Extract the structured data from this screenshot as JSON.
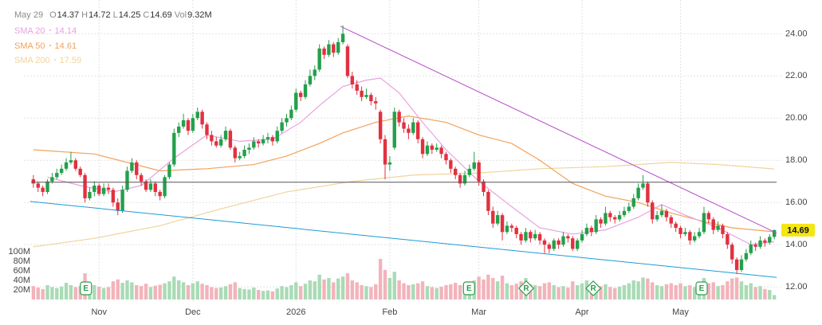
{
  "chart_data": {
    "type": "candlestick",
    "header": {
      "date": "May 29",
      "fields": [
        {
          "label": "O",
          "value": 14.37
        },
        {
          "label": "H",
          "value": 14.72
        },
        {
          "label": "L",
          "value": 14.25
        },
        {
          "label": "C",
          "value": 14.69
        },
        {
          "label": "Vol",
          "value": "9.32M"
        }
      ]
    },
    "xlim": [
      -1,
      159.5
    ],
    "xticks": [
      {
        "value": 14,
        "label": "Nov"
      },
      {
        "value": 34,
        "label": "Dec"
      },
      {
        "value": 56,
        "label": "2026"
      },
      {
        "value": 76,
        "label": "Feb"
      },
      {
        "value": 95,
        "label": "Mar"
      },
      {
        "value": 117,
        "label": "Apr"
      },
      {
        "value": 138,
        "label": "May"
      }
    ],
    "ylim": [
      11.4,
      25.6
    ],
    "yticks": [
      {
        "value": 12,
        "label": "12.00"
      },
      {
        "value": 14,
        "label": "14.00"
      },
      {
        "value": 16,
        "label": "16.00"
      },
      {
        "value": 18,
        "label": "18.00"
      },
      {
        "value": 20,
        "label": "20.00"
      },
      {
        "value": 22,
        "label": "22.00"
      },
      {
        "value": 24,
        "label": "24.00"
      }
    ],
    "vlim": [
      0,
      100
    ],
    "vticks": [
      {
        "value": 20,
        "label": "20M"
      },
      {
        "value": 40,
        "label": "40M"
      },
      {
        "value": 60,
        "label": "60M"
      },
      {
        "value": 80,
        "label": "80M"
      },
      {
        "value": 100,
        "label": "100M"
      }
    ],
    "grid": true,
    "up_color": "#23a04b",
    "down_color": "#e2303f",
    "vol_up_color": "#a9dbb5",
    "vol_down_color": "#f3b3bb",
    "ohlc": [
      [
        17.1,
        17.3,
        16.7,
        16.9
      ],
      [
        16.9,
        17.0,
        16.5,
        16.7
      ],
      [
        16.7,
        16.8,
        16.3,
        16.5
      ],
      [
        16.5,
        17.1,
        16.4,
        17.0
      ],
      [
        17.0,
        17.4,
        16.9,
        17.2
      ],
      [
        17.2,
        17.6,
        17.1,
        17.4
      ],
      [
        17.4,
        17.8,
        17.3,
        17.6
      ],
      [
        17.6,
        18.1,
        17.5,
        17.9
      ],
      [
        17.9,
        18.4,
        17.8,
        18.0
      ],
      [
        18.0,
        18.1,
        17.5,
        17.6
      ],
      [
        17.6,
        17.7,
        17.2,
        17.3
      ],
      [
        17.3,
        17.4,
        16.0,
        16.2
      ],
      [
        16.2,
        16.7,
        16.1,
        16.5
      ],
      [
        16.5,
        17.0,
        16.3,
        16.8
      ],
      [
        16.8,
        16.9,
        16.3,
        16.4
      ],
      [
        16.4,
        16.9,
        16.3,
        16.7
      ],
      [
        16.7,
        16.9,
        16.4,
        16.6
      ],
      [
        16.6,
        16.7,
        15.8,
        16.0
      ],
      [
        16.0,
        16.2,
        15.4,
        15.6
      ],
      [
        15.6,
        16.8,
        15.5,
        16.6
      ],
      [
        16.6,
        17.7,
        16.5,
        17.5
      ],
      [
        17.5,
        18.1,
        17.4,
        17.9
      ],
      [
        17.9,
        18.0,
        17.1,
        17.3
      ],
      [
        17.3,
        17.4,
        16.8,
        17.0
      ],
      [
        17.0,
        17.1,
        16.5,
        16.6
      ],
      [
        16.6,
        17.1,
        16.5,
        16.9
      ],
      [
        16.9,
        17.0,
        16.3,
        16.5
      ],
      [
        16.5,
        16.6,
        16.1,
        16.3
      ],
      [
        16.3,
        17.3,
        16.2,
        17.2
      ],
      [
        17.2,
        17.9,
        17.1,
        17.8
      ],
      [
        17.8,
        19.5,
        17.7,
        19.3
      ],
      [
        19.3,
        19.8,
        19.1,
        19.6
      ],
      [
        19.6,
        20.2,
        19.5,
        19.9
      ],
      [
        19.9,
        20.0,
        19.2,
        19.4
      ],
      [
        19.4,
        20.2,
        19.3,
        20.0
      ],
      [
        20.0,
        20.5,
        19.9,
        20.3
      ],
      [
        20.3,
        20.4,
        19.5,
        19.7
      ],
      [
        19.7,
        19.8,
        19.0,
        19.2
      ],
      [
        19.2,
        19.4,
        18.7,
        18.9
      ],
      [
        18.9,
        19.1,
        18.6,
        18.7
      ],
      [
        18.7,
        19.2,
        18.6,
        19.0
      ],
      [
        19.0,
        19.6,
        18.9,
        19.4
      ],
      [
        19.4,
        19.5,
        18.5,
        18.6
      ],
      [
        18.6,
        18.7,
        17.9,
        18.1
      ],
      [
        18.1,
        18.4,
        18.0,
        18.2
      ],
      [
        18.2,
        18.7,
        18.1,
        18.5
      ],
      [
        18.5,
        18.8,
        18.3,
        18.6
      ],
      [
        18.6,
        19.1,
        18.5,
        18.9
      ],
      [
        18.9,
        19.0,
        18.6,
        18.8
      ],
      [
        18.8,
        19.2,
        18.7,
        19.0
      ],
      [
        19.0,
        19.3,
        18.8,
        19.1
      ],
      [
        19.1,
        19.2,
        18.7,
        18.9
      ],
      [
        18.9,
        19.6,
        18.8,
        19.4
      ],
      [
        19.4,
        20.0,
        19.3,
        19.8
      ],
      [
        19.8,
        20.2,
        19.6,
        20.0
      ],
      [
        20.0,
        20.6,
        19.9,
        20.4
      ],
      [
        20.4,
        21.4,
        20.3,
        21.2
      ],
      [
        21.2,
        21.3,
        20.8,
        21.0
      ],
      [
        21.0,
        21.8,
        20.9,
        21.6
      ],
      [
        21.6,
        22.3,
        21.5,
        22.0
      ],
      [
        22.0,
        22.5,
        21.8,
        22.3
      ],
      [
        22.3,
        23.5,
        22.2,
        23.3
      ],
      [
        23.3,
        23.4,
        22.8,
        23.0
      ],
      [
        23.0,
        23.7,
        22.9,
        23.5
      ],
      [
        23.5,
        23.6,
        22.9,
        23.1
      ],
      [
        23.1,
        23.8,
        23.0,
        23.6
      ],
      [
        23.6,
        24.4,
        23.5,
        24.0
      ],
      [
        23.4,
        23.5,
        21.9,
        22.0
      ],
      [
        22.0,
        22.2,
        21.4,
        21.6
      ],
      [
        21.6,
        21.8,
        21.1,
        21.3
      ],
      [
        21.3,
        21.5,
        20.8,
        21.0
      ],
      [
        21.0,
        21.4,
        20.9,
        21.1
      ],
      [
        21.1,
        21.2,
        20.6,
        20.8
      ],
      [
        20.8,
        21.0,
        20.4,
        20.7
      ],
      [
        20.3,
        20.4,
        18.8,
        19.0
      ],
      [
        19.0,
        19.2,
        17.1,
        17.8
      ],
      [
        17.8,
        18.2,
        17.5,
        17.9
      ],
      [
        18.6,
        20.5,
        18.5,
        20.3
      ],
      [
        20.3,
        20.4,
        19.6,
        19.8
      ],
      [
        19.8,
        20.0,
        19.3,
        19.5
      ],
      [
        19.5,
        19.7,
        19.0,
        19.3
      ],
      [
        19.3,
        20.0,
        19.2,
        19.8
      ],
      [
        19.8,
        19.9,
        18.8,
        19.0
      ],
      [
        19.0,
        19.1,
        18.1,
        18.3
      ],
      [
        18.3,
        18.9,
        18.2,
        18.7
      ],
      [
        18.7,
        18.8,
        18.3,
        18.5
      ],
      [
        18.5,
        18.8,
        18.4,
        18.6
      ],
      [
        18.6,
        18.7,
        18.1,
        18.3
      ],
      [
        18.3,
        18.4,
        17.8,
        18.0
      ],
      [
        18.0,
        18.1,
        17.4,
        17.6
      ],
      [
        17.6,
        17.7,
        17.1,
        17.3
      ],
      [
        17.3,
        17.4,
        16.7,
        16.9
      ],
      [
        16.9,
        17.5,
        16.8,
        17.3
      ],
      [
        17.3,
        17.8,
        17.2,
        17.6
      ],
      [
        17.6,
        18.4,
        17.5,
        17.9
      ],
      [
        17.9,
        18.0,
        16.8,
        17.0
      ],
      [
        17.0,
        17.1,
        16.3,
        16.5
      ],
      [
        16.5,
        16.6,
        15.4,
        15.6
      ],
      [
        15.6,
        15.8,
        14.8,
        15.0
      ],
      [
        15.0,
        15.6,
        14.9,
        15.4
      ],
      [
        15.4,
        15.5,
        14.2,
        14.6
      ],
      [
        14.6,
        15.1,
        14.5,
        14.9
      ],
      [
        14.9,
        15.0,
        14.6,
        14.8
      ],
      [
        14.8,
        14.9,
        14.3,
        14.5
      ],
      [
        14.5,
        14.6,
        14.0,
        14.2
      ],
      [
        14.2,
        14.8,
        14.1,
        14.6
      ],
      [
        14.6,
        14.7,
        14.1,
        14.3
      ],
      [
        14.3,
        14.7,
        14.2,
        14.5
      ],
      [
        14.5,
        14.6,
        14.0,
        14.2
      ],
      [
        14.2,
        14.3,
        13.6,
        14.0
      ],
      [
        14.0,
        14.1,
        13.6,
        13.8
      ],
      [
        13.8,
        14.3,
        13.7,
        14.2
      ],
      [
        14.2,
        14.3,
        13.8,
        14.0
      ],
      [
        14.0,
        14.6,
        13.9,
        14.4
      ],
      [
        14.4,
        14.5,
        14.1,
        14.3
      ],
      [
        14.3,
        14.4,
        13.7,
        13.8
      ],
      [
        13.8,
        14.3,
        13.7,
        14.2
      ],
      [
        14.2,
        14.7,
        14.1,
        14.5
      ],
      [
        14.5,
        15.0,
        14.4,
        14.8
      ],
      [
        14.8,
        14.9,
        14.4,
        14.6
      ],
      [
        14.6,
        15.4,
        14.5,
        15.2
      ],
      [
        15.2,
        15.3,
        14.8,
        15.0
      ],
      [
        15.0,
        15.8,
        14.9,
        15.5
      ],
      [
        15.5,
        15.6,
        15.1,
        15.3
      ],
      [
        15.3,
        15.4,
        15.0,
        15.2
      ],
      [
        15.2,
        15.6,
        15.1,
        15.4
      ],
      [
        15.4,
        15.8,
        15.3,
        15.6
      ],
      [
        15.6,
        16.0,
        15.5,
        15.8
      ],
      [
        15.8,
        16.4,
        15.7,
        16.2
      ],
      [
        16.2,
        16.9,
        16.1,
        16.7
      ],
      [
        16.7,
        17.3,
        16.6,
        16.9
      ],
      [
        16.9,
        17.0,
        15.8,
        16.0
      ],
      [
        16.0,
        16.1,
        15.0,
        15.2
      ],
      [
        15.2,
        15.6,
        15.1,
        15.4
      ],
      [
        15.4,
        15.9,
        15.3,
        15.6
      ],
      [
        15.6,
        15.7,
        15.1,
        15.3
      ],
      [
        15.3,
        15.4,
        14.8,
        15.0
      ],
      [
        15.0,
        15.1,
        14.6,
        14.8
      ],
      [
        14.8,
        14.9,
        14.3,
        14.5
      ],
      [
        14.5,
        14.8,
        14.4,
        14.6
      ],
      [
        14.6,
        14.7,
        14.0,
        14.2
      ],
      [
        14.2,
        14.6,
        14.1,
        14.4
      ],
      [
        14.4,
        14.8,
        14.3,
        14.6
      ],
      [
        14.6,
        15.8,
        14.5,
        15.5
      ],
      [
        15.5,
        15.6,
        15.0,
        15.2
      ],
      [
        15.2,
        15.3,
        14.5,
        14.7
      ],
      [
        14.7,
        15.1,
        14.6,
        14.9
      ],
      [
        14.9,
        15.0,
        14.3,
        14.5
      ],
      [
        14.5,
        14.6,
        13.8,
        14.0
      ],
      [
        14.0,
        14.1,
        13.1,
        13.3
      ],
      [
        13.3,
        13.4,
        12.6,
        12.8
      ],
      [
        12.8,
        13.5,
        12.7,
        13.3
      ],
      [
        13.3,
        13.8,
        13.2,
        13.6
      ],
      [
        13.6,
        14.2,
        13.5,
        14.0
      ],
      [
        14.0,
        14.1,
        13.7,
        13.9
      ],
      [
        13.9,
        14.4,
        13.8,
        14.2
      ],
      [
        14.2,
        14.3,
        13.9,
        14.1
      ],
      [
        14.1,
        14.5,
        14.0,
        14.37
      ],
      [
        14.37,
        14.72,
        14.25,
        14.69
      ]
    ],
    "volume": [
      28,
      25,
      22,
      30,
      26,
      24,
      27,
      35,
      30,
      26,
      28,
      55,
      32,
      30,
      27,
      24,
      26,
      38,
      42,
      35,
      40,
      36,
      30,
      28,
      33,
      26,
      29,
      31,
      34,
      38,
      48,
      40,
      36,
      30,
      34,
      38,
      33,
      30,
      26,
      24,
      25,
      28,
      32,
      36,
      24,
      22,
      21,
      25,
      20,
      18,
      19,
      17,
      23,
      28,
      26,
      30,
      36,
      28,
      33,
      40,
      38,
      52,
      42,
      45,
      36,
      44,
      48,
      55,
      40,
      36,
      30,
      28,
      26,
      32,
      85,
      62,
      45,
      58,
      40,
      34,
      30,
      32,
      34,
      38,
      28,
      26,
      24,
      27,
      30,
      32,
      35,
      30,
      26,
      28,
      40,
      48,
      42,
      52,
      45,
      38,
      50,
      34,
      30,
      33,
      38,
      45,
      32,
      30,
      28,
      34,
      36,
      30,
      26,
      28,
      25,
      38,
      30,
      34,
      40,
      32,
      30,
      28,
      32,
      26,
      24,
      27,
      30,
      34,
      40,
      38,
      46,
      44,
      36,
      30,
      28,
      32,
      34,
      30,
      34,
      28,
      30,
      26,
      30,
      45,
      34,
      36,
      28,
      30,
      38,
      44,
      46,
      38,
      30,
      34,
      26,
      28,
      22,
      20,
      9.32
    ],
    "sma": [
      {
        "name": "SMA 20",
        "last": 14.14,
        "color": "#e7a2df",
        "x": [
          3,
          10,
          17,
          23,
          30,
          37,
          44,
          51,
          57,
          61,
          66,
          71,
          74,
          78,
          83,
          88,
          95,
          102,
          108,
          115,
          122,
          129,
          134,
          139,
          146,
          153,
          158
        ],
        "values": [
          17.2,
          16.8,
          16.5,
          16.8,
          18.1,
          19.2,
          18.9,
          19.0,
          19.8,
          20.6,
          21.5,
          21.8,
          21.9,
          21.2,
          19.8,
          18.5,
          17.0,
          15.8,
          14.8,
          14.5,
          14.7,
          15.3,
          15.9,
          15.4,
          14.8,
          14.0,
          14.14
        ]
      },
      {
        "name": "SMA 50",
        "last": 14.61,
        "color": "#f2a25a",
        "x": [
          0,
          13,
          27,
          37,
          47,
          54,
          61,
          66,
          73,
          80,
          88,
          95,
          102,
          108,
          115,
          122,
          129,
          136,
          143,
          149,
          158
        ],
        "values": [
          18.5,
          18.3,
          17.5,
          17.6,
          17.8,
          18.2,
          18.8,
          19.3,
          19.8,
          20.1,
          19.8,
          19.2,
          18.8,
          18.0,
          16.9,
          16.3,
          16.0,
          15.5,
          15.1,
          14.8,
          14.61
        ]
      },
      {
        "name": "SMA 200",
        "last": 17.59,
        "color": "#f0d49c",
        "x": [
          0,
          13,
          27,
          40,
          54,
          68,
          81,
          95,
          108,
          122,
          136,
          146,
          158
        ],
        "values": [
          13.9,
          14.3,
          14.9,
          15.7,
          16.5,
          17.0,
          17.3,
          17.4,
          17.6,
          17.7,
          17.9,
          17.8,
          17.59
        ]
      }
    ],
    "lines": [
      {
        "color": "#b64bc7",
        "x": [
          65.5,
          158.5
        ],
        "values": [
          24.35,
          14.55
        ]
      },
      {
        "color": "#1d9ad6",
        "x": [
          -0.7,
          158.5
        ],
        "values": [
          16.05,
          12.45
        ]
      },
      {
        "color": "#555555",
        "x": [
          -0.5,
          158.5
        ],
        "values": [
          16.96,
          16.96
        ]
      }
    ],
    "events": [
      {
        "label": "E",
        "x": 11.2
      },
      {
        "label": "E",
        "x": 92.9
      },
      {
        "label": "R",
        "x": 105.1
      },
      {
        "label": "R",
        "x": 119.4
      },
      {
        "label": "E",
        "x": 142.5
      }
    ]
  }
}
